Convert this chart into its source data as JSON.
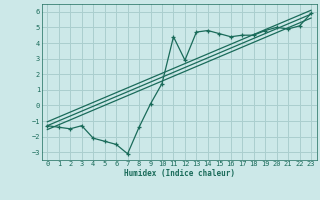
{
  "title": "",
  "xlabel": "Humidex (Indice chaleur)",
  "bg_color": "#cce8e8",
  "grid_color": "#aacece",
  "line_color": "#1a6b5a",
  "xlim": [
    -0.5,
    23.5
  ],
  "ylim": [
    -3.5,
    6.5
  ],
  "xticks": [
    0,
    1,
    2,
    3,
    4,
    5,
    6,
    7,
    8,
    9,
    10,
    11,
    12,
    13,
    14,
    15,
    16,
    17,
    18,
    19,
    20,
    21,
    22,
    23
  ],
  "yticks": [
    -3,
    -2,
    -1,
    0,
    1,
    2,
    3,
    4,
    5,
    6
  ],
  "curve_x": [
    0,
    1,
    2,
    3,
    4,
    5,
    6,
    7,
    8,
    9,
    10,
    11,
    12,
    13,
    14,
    15,
    16,
    17,
    18,
    19,
    20,
    21,
    22,
    23
  ],
  "curve_y": [
    -1.3,
    -1.4,
    -1.5,
    -1.3,
    -2.1,
    -2.3,
    -2.5,
    -3.1,
    -1.4,
    0.1,
    1.4,
    4.4,
    2.9,
    4.7,
    4.8,
    4.6,
    4.4,
    4.5,
    4.5,
    4.8,
    5.0,
    4.9,
    5.1,
    5.9
  ],
  "line1_x": [
    0,
    23
  ],
  "line1_y": [
    -1.3,
    5.85
  ],
  "line2_x": [
    0,
    23
  ],
  "line2_y": [
    -1.05,
    6.1
  ],
  "line3_x": [
    0,
    23
  ],
  "line3_y": [
    -1.55,
    5.6
  ]
}
